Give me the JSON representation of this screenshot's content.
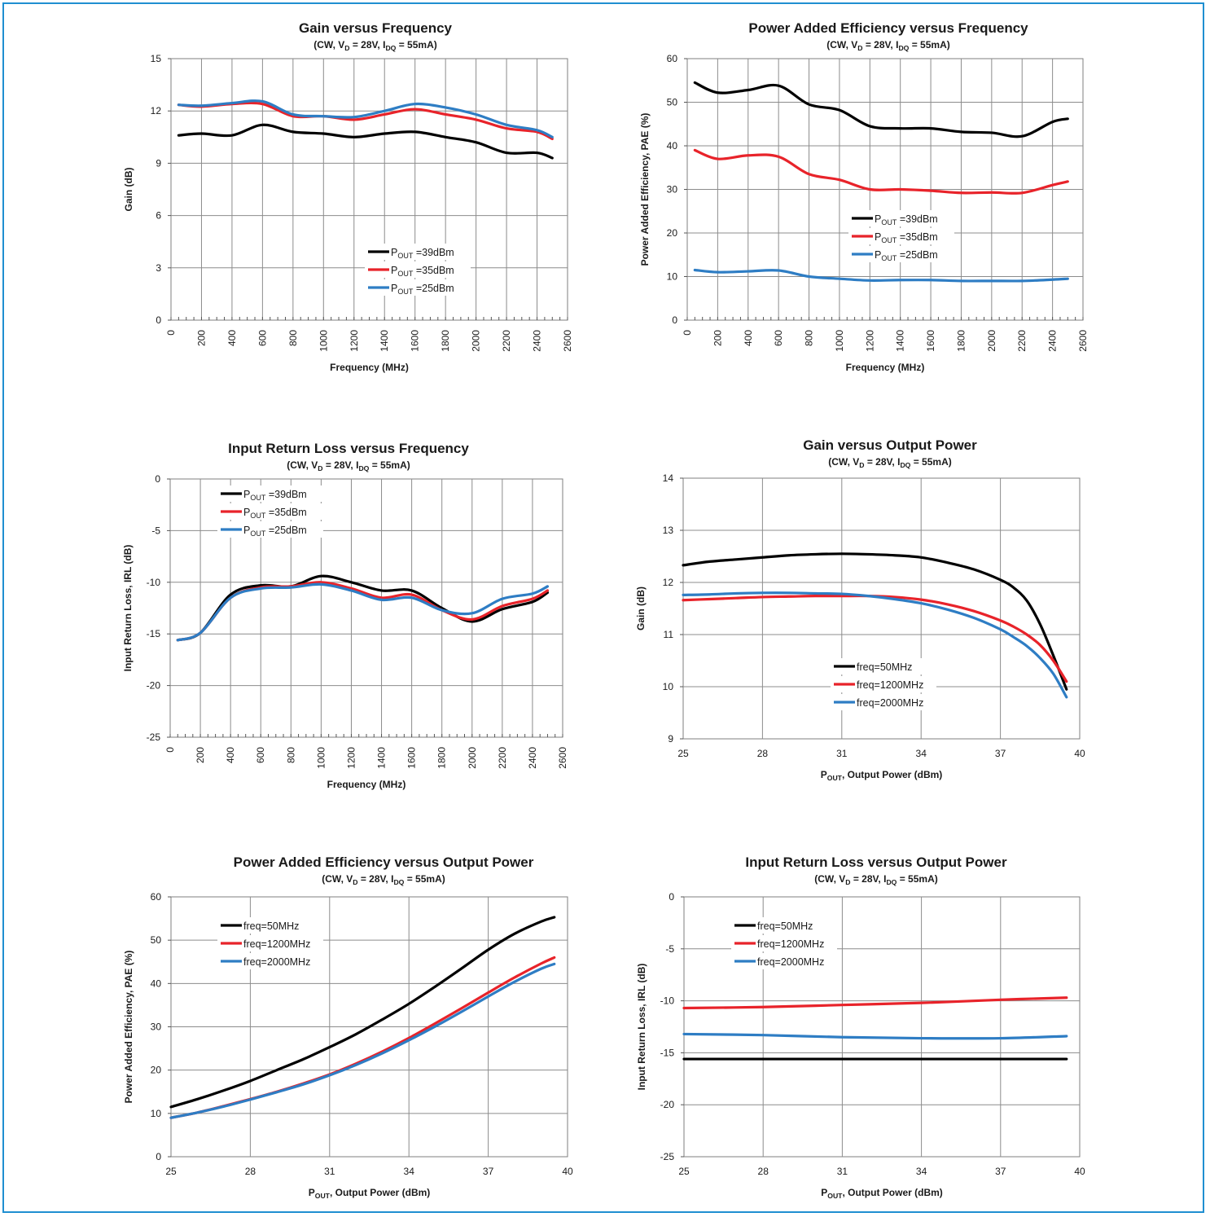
{
  "chart_data": [
    {
      "id": "gain-vs-freq",
      "type": "line",
      "title": "Gain versus Frequency",
      "subtitle": {
        "pre": "(CW, V",
        "sub1": "D",
        "mid": " = 28V, I",
        "sub2": "DQ",
        "post": " = 55mA)"
      },
      "xlabel": {
        "pre": "Frequency (MHz)",
        "sub": "",
        "post": ""
      },
      "ylabel": "Gain (dB)",
      "xlim": [
        0,
        2600
      ],
      "ylim": [
        0,
        15
      ],
      "xticks": [
        0,
        200,
        400,
        600,
        800,
        1000,
        1200,
        1400,
        1600,
        1800,
        2000,
        2200,
        2400,
        2600
      ],
      "yticks": [
        0,
        3,
        6,
        9,
        12,
        15
      ],
      "xtick_rotate": true,
      "minor_x": true,
      "grid": true,
      "legend_position": "bottom-center",
      "series": [
        {
          "label": {
            "pre": "P",
            "sub": "OUT",
            "post": " =39dBm"
          },
          "color": "#000000",
          "x": [
            50,
            200,
            400,
            600,
            800,
            1000,
            1200,
            1400,
            1600,
            1800,
            2000,
            2200,
            2400,
            2500
          ],
          "y": [
            10.6,
            10.7,
            10.6,
            11.2,
            10.8,
            10.7,
            10.5,
            10.7,
            10.8,
            10.5,
            10.2,
            9.6,
            9.6,
            9.3
          ]
        },
        {
          "label": {
            "pre": "P",
            "sub": "OUT",
            "post": " =35dBm"
          },
          "color": "#e8232a",
          "x": [
            50,
            200,
            400,
            600,
            800,
            1000,
            1200,
            1400,
            1600,
            1800,
            2000,
            2200,
            2400,
            2500
          ],
          "y": [
            12.35,
            12.25,
            12.4,
            12.4,
            11.7,
            11.7,
            11.5,
            11.8,
            12.1,
            11.8,
            11.5,
            11.0,
            10.8,
            10.4
          ]
        },
        {
          "label": {
            "pre": "P",
            "sub": "OUT",
            "post": " =25dBm"
          },
          "color": "#2e7dc4",
          "x": [
            50,
            200,
            400,
            600,
            800,
            1000,
            1200,
            1400,
            1600,
            1800,
            2000,
            2200,
            2400,
            2500
          ],
          "y": [
            12.35,
            12.3,
            12.45,
            12.55,
            11.8,
            11.7,
            11.65,
            12.0,
            12.4,
            12.2,
            11.8,
            11.2,
            10.9,
            10.5
          ]
        }
      ]
    },
    {
      "id": "pae-vs-freq",
      "type": "line",
      "title": "Power Added Efficiency versus Frequency",
      "subtitle": {
        "pre": "(CW, V",
        "sub1": "D",
        "mid": " = 28V, I",
        "sub2": "DQ",
        "post": " = 55mA)"
      },
      "xlabel": {
        "pre": "Frequency (MHz)",
        "sub": "",
        "post": ""
      },
      "ylabel": "Power Added Efficiency, PAE (%)",
      "xlim": [
        0,
        2600
      ],
      "ylim": [
        0,
        60
      ],
      "xticks": [
        0,
        200,
        400,
        600,
        800,
        1000,
        1200,
        1400,
        1600,
        1800,
        2000,
        2200,
        2400,
        2600
      ],
      "yticks": [
        0,
        10,
        20,
        30,
        40,
        50,
        60
      ],
      "xtick_rotate": true,
      "minor_x": true,
      "grid": true,
      "legend_position": "center",
      "series": [
        {
          "label": {
            "pre": "P",
            "sub": "OUT",
            "post": " =39dBm"
          },
          "color": "#000000",
          "x": [
            50,
            200,
            400,
            600,
            800,
            1000,
            1200,
            1400,
            1600,
            1800,
            2000,
            2200,
            2400,
            2500
          ],
          "y": [
            54.5,
            52.2,
            52.8,
            53.8,
            49.5,
            48.2,
            44.5,
            44.0,
            44.0,
            43.2,
            43.0,
            42.2,
            45.5,
            46.2
          ]
        },
        {
          "label": {
            "pre": "P",
            "sub": "OUT",
            "post": " =35dBm"
          },
          "color": "#e8232a",
          "x": [
            50,
            200,
            400,
            600,
            800,
            1000,
            1200,
            1400,
            1600,
            1800,
            2000,
            2200,
            2400,
            2500
          ],
          "y": [
            39.0,
            37.0,
            37.8,
            37.5,
            33.5,
            32.2,
            30.0,
            30.0,
            29.7,
            29.2,
            29.3,
            29.2,
            31.0,
            31.8
          ]
        },
        {
          "label": {
            "pre": "P",
            "sub": "OUT",
            "post": " =25dBm"
          },
          "color": "#2e7dc4",
          "x": [
            50,
            200,
            400,
            600,
            800,
            1000,
            1200,
            1400,
            1600,
            1800,
            2000,
            2200,
            2400,
            2500
          ],
          "y": [
            11.5,
            11.0,
            11.2,
            11.4,
            10.0,
            9.5,
            9.1,
            9.2,
            9.2,
            9.0,
            9.0,
            9.0,
            9.3,
            9.5
          ]
        }
      ]
    },
    {
      "id": "irl-vs-freq",
      "type": "line",
      "title": "Input Return Loss versus Frequency",
      "subtitle": {
        "pre": "(CW, V",
        "sub1": "D",
        "mid": " = 28V, I",
        "sub2": "DQ",
        "post": " = 55mA)"
      },
      "xlabel": {
        "pre": "Frequency (MHz)",
        "sub": "",
        "post": ""
      },
      "ylabel": "Input Return Loss, IRL (dB)",
      "xlim": [
        0,
        2600
      ],
      "ylim": [
        -25,
        0
      ],
      "xticks": [
        0,
        200,
        400,
        600,
        800,
        1000,
        1200,
        1400,
        1600,
        1800,
        2000,
        2200,
        2400,
        2600
      ],
      "yticks": [
        -25,
        -20,
        -15,
        -10,
        -5,
        0
      ],
      "xtick_rotate": true,
      "minor_x": true,
      "grid": true,
      "legend_position": "top-left",
      "series": [
        {
          "label": {
            "pre": "P",
            "sub": "OUT",
            "post": " =39dBm"
          },
          "color": "#000000",
          "x": [
            50,
            200,
            400,
            600,
            800,
            1000,
            1200,
            1400,
            1600,
            1800,
            2000,
            2200,
            2400,
            2500
          ],
          "y": [
            -15.6,
            -14.9,
            -11.2,
            -10.3,
            -10.4,
            -9.4,
            -10.0,
            -10.8,
            -10.8,
            -12.5,
            -13.8,
            -12.6,
            -11.9,
            -11.0
          ]
        },
        {
          "label": {
            "pre": "P",
            "sub": "OUT",
            "post": " =35dBm"
          },
          "color": "#e8232a",
          "x": [
            50,
            200,
            400,
            600,
            800,
            1000,
            1200,
            1400,
            1600,
            1800,
            2000,
            2200,
            2400,
            2500
          ],
          "y": [
            -15.6,
            -14.9,
            -11.5,
            -10.5,
            -10.4,
            -10.0,
            -10.6,
            -11.5,
            -11.2,
            -12.7,
            -13.6,
            -12.3,
            -11.6,
            -10.8
          ]
        },
        {
          "label": {
            "pre": "P",
            "sub": "OUT",
            "post": " =25dBm"
          },
          "color": "#2e7dc4",
          "x": [
            50,
            200,
            400,
            600,
            800,
            1000,
            1200,
            1400,
            1600,
            1800,
            2000,
            2200,
            2400,
            2500
          ],
          "y": [
            -15.6,
            -14.9,
            -11.5,
            -10.6,
            -10.5,
            -10.2,
            -10.8,
            -11.7,
            -11.5,
            -12.7,
            -13.0,
            -11.6,
            -11.1,
            -10.4
          ]
        }
      ]
    },
    {
      "id": "gain-vs-pout",
      "type": "line",
      "title": "Gain versus Output Power",
      "subtitle": {
        "pre": "(CW, V",
        "sub1": "D",
        "mid": " = 28V, I",
        "sub2": "DQ",
        "post": " = 55mA)"
      },
      "xlabel": {
        "pre": "P",
        "sub": "OUT",
        "post": ", Output Power (dBm)"
      },
      "ylabel": "Gain (dB)",
      "xlim": [
        25,
        40
      ],
      "ylim": [
        9,
        14
      ],
      "xticks": [
        25,
        28,
        31,
        34,
        37,
        40
      ],
      "yticks": [
        9,
        10,
        11,
        12,
        13,
        14
      ],
      "xtick_rotate": false,
      "minor_x": false,
      "grid": true,
      "legend_position": "bottom-center",
      "series": [
        {
          "label": {
            "pre": "freq=50MHz",
            "sub": "",
            "post": ""
          },
          "color": "#000000",
          "x": [
            25,
            26,
            27,
            28,
            29,
            30,
            31,
            32,
            33,
            34,
            35,
            36,
            37,
            37.5,
            38,
            38.5,
            39,
            39.5
          ],
          "y": [
            12.33,
            12.4,
            12.44,
            12.48,
            12.52,
            12.54,
            12.55,
            12.54,
            12.52,
            12.48,
            12.38,
            12.25,
            12.05,
            11.9,
            11.65,
            11.2,
            10.6,
            9.95
          ]
        },
        {
          "label": {
            "pre": "freq=1200MHz",
            "sub": "",
            "post": ""
          },
          "color": "#e8232a",
          "x": [
            25,
            26,
            27,
            28,
            29,
            30,
            31,
            32,
            33,
            34,
            35,
            36,
            37,
            37.5,
            38,
            38.5,
            39,
            39.5
          ],
          "y": [
            11.66,
            11.68,
            11.7,
            11.72,
            11.73,
            11.74,
            11.74,
            11.74,
            11.72,
            11.67,
            11.58,
            11.45,
            11.27,
            11.15,
            11.0,
            10.8,
            10.5,
            10.1
          ]
        },
        {
          "label": {
            "pre": "freq=2000MHz",
            "sub": "",
            "post": ""
          },
          "color": "#2e7dc4",
          "x": [
            25,
            26,
            27,
            28,
            29,
            30,
            31,
            32,
            33,
            34,
            35,
            36,
            37,
            37.5,
            38,
            38.5,
            39,
            39.5
          ],
          "y": [
            11.76,
            11.77,
            11.79,
            11.8,
            11.8,
            11.79,
            11.78,
            11.74,
            11.68,
            11.6,
            11.48,
            11.32,
            11.1,
            10.95,
            10.78,
            10.55,
            10.25,
            9.8
          ]
        }
      ]
    },
    {
      "id": "pae-vs-pout",
      "type": "line",
      "title": "Power Added Efficiency versus Output Power",
      "subtitle": {
        "pre": "(CW, V",
        "sub1": "D",
        "mid": " = 28V, I",
        "sub2": "DQ",
        "post": " = 55mA)"
      },
      "xlabel": {
        "pre": "P",
        "sub": "OUT",
        "post": ", Output Power (dBm)"
      },
      "ylabel": "Power Added Efficiency, PAE (%)",
      "xlim": [
        25,
        40
      ],
      "ylim": [
        0,
        60
      ],
      "xticks": [
        25,
        28,
        31,
        34,
        37,
        40
      ],
      "yticks": [
        0,
        10,
        20,
        30,
        40,
        50,
        60
      ],
      "xtick_rotate": false,
      "minor_x": false,
      "grid": true,
      "legend_position": "top-left",
      "series": [
        {
          "label": {
            "pre": "freq=50MHz",
            "sub": "",
            "post": ""
          },
          "color": "#000000",
          "x": [
            25,
            26,
            27,
            28,
            29,
            30,
            31,
            32,
            33,
            34,
            35,
            36,
            37,
            38,
            39,
            39.5
          ],
          "y": [
            11.5,
            13.3,
            15.3,
            17.5,
            20.0,
            22.5,
            25.3,
            28.3,
            31.7,
            35.3,
            39.3,
            43.5,
            47.8,
            51.5,
            54.3,
            55.3
          ]
        },
        {
          "label": {
            "pre": "freq=1200MHz",
            "sub": "",
            "post": ""
          },
          "color": "#e8232a",
          "x": [
            25,
            26,
            27,
            28,
            29,
            30,
            31,
            32,
            33,
            34,
            35,
            36,
            37,
            38,
            39,
            39.5
          ],
          "y": [
            9.0,
            10.2,
            11.7,
            13.3,
            15.0,
            16.9,
            19.0,
            21.5,
            24.3,
            27.4,
            30.8,
            34.3,
            37.9,
            41.4,
            44.6,
            46.0
          ]
        },
        {
          "label": {
            "pre": "freq=2000MHz",
            "sub": "",
            "post": ""
          },
          "color": "#2e7dc4",
          "x": [
            25,
            26,
            27,
            28,
            29,
            30,
            31,
            32,
            33,
            34,
            35,
            36,
            37,
            38,
            39,
            39.5
          ],
          "y": [
            9.0,
            10.2,
            11.6,
            13.2,
            14.9,
            16.7,
            18.8,
            21.2,
            23.9,
            26.9,
            30.1,
            33.5,
            37.0,
            40.4,
            43.4,
            44.5
          ]
        }
      ]
    },
    {
      "id": "irl-vs-pout",
      "type": "line",
      "title": "Input Return Loss versus Output Power",
      "subtitle": {
        "pre": "(CW, V",
        "sub1": "D",
        "mid": " = 28V, I",
        "sub2": "DQ",
        "post": " = 55mA)"
      },
      "xlabel": {
        "pre": "P",
        "sub": "OUT",
        "post": ", Output Power (dBm)"
      },
      "ylabel": "Input Return Loss, IRL (dB)",
      "xlim": [
        25,
        40
      ],
      "ylim": [
        -25,
        0
      ],
      "xticks": [
        25,
        28,
        31,
        34,
        37,
        40
      ],
      "yticks": [
        -25,
        -20,
        -15,
        -10,
        -5,
        0
      ],
      "xtick_rotate": false,
      "minor_x": false,
      "grid": true,
      "legend_position": "top-left",
      "series": [
        {
          "label": {
            "pre": "freq=50MHz",
            "sub": "",
            "post": ""
          },
          "color": "#000000",
          "x": [
            25,
            28,
            31,
            34,
            37,
            39.5
          ],
          "y": [
            -15.6,
            -15.6,
            -15.6,
            -15.6,
            -15.6,
            -15.6
          ]
        },
        {
          "label": {
            "pre": "freq=1200MHz",
            "sub": "",
            "post": ""
          },
          "color": "#e8232a",
          "x": [
            25,
            28,
            31,
            34,
            37,
            39.5
          ],
          "y": [
            -10.7,
            -10.6,
            -10.4,
            -10.2,
            -9.9,
            -9.7
          ]
        },
        {
          "label": {
            "pre": "freq=2000MHz",
            "sub": "",
            "post": ""
          },
          "color": "#2e7dc4",
          "x": [
            25,
            28,
            31,
            34,
            37,
            39.5
          ],
          "y": [
            -13.2,
            -13.3,
            -13.5,
            -13.6,
            -13.6,
            -13.4
          ]
        }
      ]
    }
  ]
}
